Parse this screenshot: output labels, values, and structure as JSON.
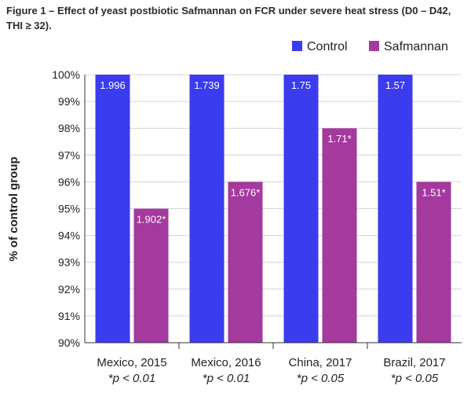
{
  "chart_data": {
    "type": "bar",
    "title": "Figure 1 – Effect of yeast postbiotic Safmannan on FCR under severe heat stress (D0 – D42, THI ≥ 32).",
    "xlabel": "",
    "ylabel": "% of control group",
    "ylim": [
      90,
      100
    ],
    "yticks": [
      "90%",
      "91%",
      "92%",
      "93%",
      "94%",
      "95%",
      "96%",
      "97%",
      "98%",
      "99%",
      "100%"
    ],
    "categories": [
      "Mexico, 2015",
      "Mexico, 2016",
      "China, 2017",
      "Brazil, 2017"
    ],
    "significance": [
      "*p < 0.01",
      "*p < 0.01",
      "*p < 0.05",
      "*p < 0.05"
    ],
    "legend_position": "top-right",
    "series": [
      {
        "name": "Control",
        "color": "#3b3bef",
        "values": [
          100,
          100,
          100,
          100
        ],
        "labels": [
          "1.996",
          "1.739",
          "1.75",
          "1.57"
        ]
      },
      {
        "name": "Safmannan",
        "color": "#a4399e",
        "values": [
          95,
          96,
          98,
          96
        ],
        "labels": [
          "1.902*",
          "1.676*",
          "1.71*",
          "1.51*"
        ]
      }
    ]
  }
}
